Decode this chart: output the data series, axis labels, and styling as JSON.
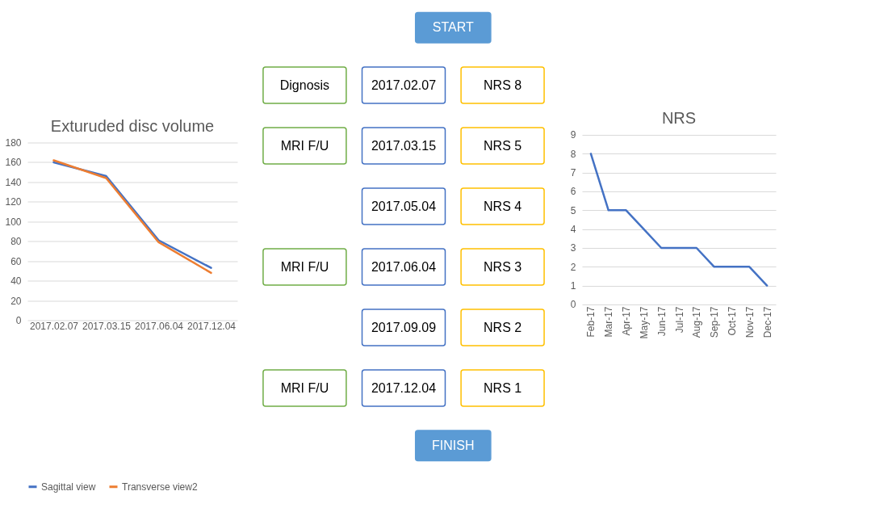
{
  "chart_data": [
    {
      "type": "line",
      "title": "Exturuded disc volume",
      "categories": [
        "2017.02.07",
        "2017.03.15",
        "2017.06.04",
        "2017.12.04"
      ],
      "series": [
        {
          "name": "Sagittal view",
          "color": "#4472c4",
          "values": [
            160,
            146,
            81,
            53
          ]
        },
        {
          "name": "Transverse view2",
          "color": "#ed7d31",
          "values": [
            162,
            144,
            79,
            48
          ]
        }
      ],
      "ylim": [
        0,
        180
      ],
      "yticks": [
        0,
        20,
        40,
        60,
        80,
        100,
        120,
        140,
        160,
        180
      ],
      "grid": "y",
      "legend": "bottom"
    },
    {
      "type": "other",
      "colors": [
        "#70ad47",
        "#4472c4",
        "#ffc000",
        "#5b9bd5"
      ],
      "annotations": [
        "START",
        "FINISH"
      ],
      "cell_labels": [
        [
          "Dignosis",
          "2017.02.07",
          "NRS 8"
        ],
        [
          "MRI F/U",
          "2017.03.15",
          "NRS 5"
        ],
        [
          null,
          "2017.05.04",
          "NRS 4"
        ],
        [
          "MRI F/U",
          "2017.06.04",
          "NRS 3"
        ],
        [
          null,
          "2017.09.09",
          "NRS 2"
        ],
        [
          "MRI F/U",
          "2017.12.04",
          "NRS 1"
        ]
      ]
    },
    {
      "type": "line",
      "title": "NRS",
      "categories": [
        "Feb-17",
        "Mar-17",
        "Apr-17",
        "May-17",
        "Jun-17",
        "Jul-17",
        "Aug-17",
        "Sep-17",
        "Oct-17",
        "Nov-17",
        "Dec-17"
      ],
      "series": [
        {
          "color": "#4472c4",
          "values": [
            8,
            5,
            5,
            4,
            3,
            3,
            3,
            2,
            2,
            2,
            1
          ]
        }
      ],
      "ylim": [
        0,
        9
      ],
      "yticks": [
        0,
        1,
        2,
        3,
        4,
        5,
        6,
        7,
        8,
        9
      ],
      "grid": "y"
    }
  ]
}
